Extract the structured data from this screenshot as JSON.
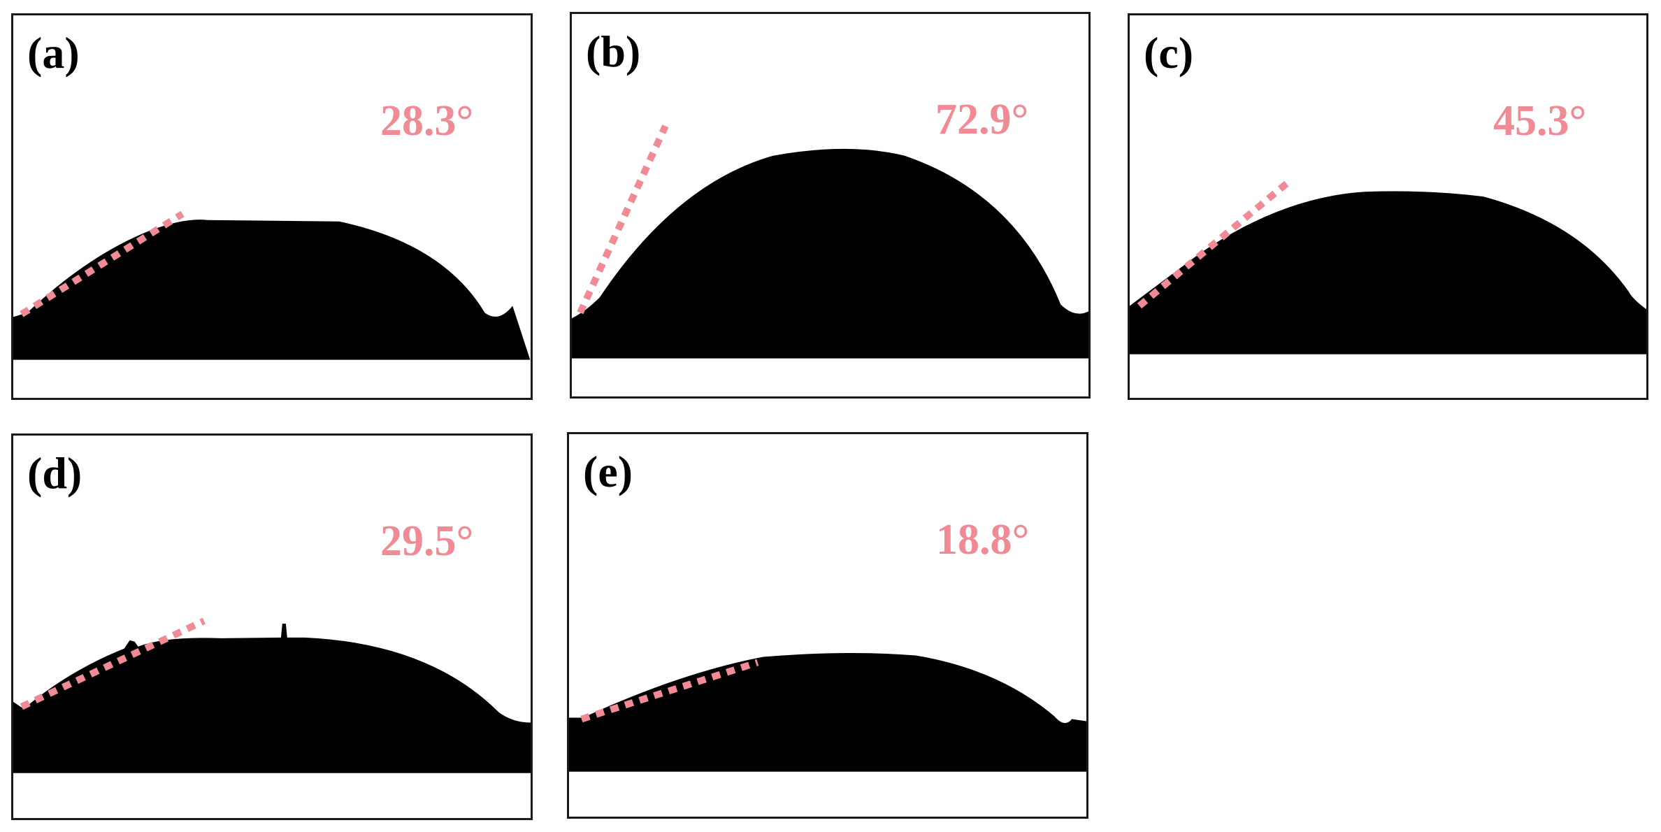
{
  "accent_color": "#F08A94",
  "panels": [
    {
      "label": "(a)",
      "angle": "28.3°"
    },
    {
      "label": "(b)",
      "angle": "72.9°"
    },
    {
      "label": "(c)",
      "angle": "45.3°"
    },
    {
      "label": "(d)",
      "angle": "29.5°"
    },
    {
      "label": "(e)",
      "angle": "18.8°"
    }
  ]
}
